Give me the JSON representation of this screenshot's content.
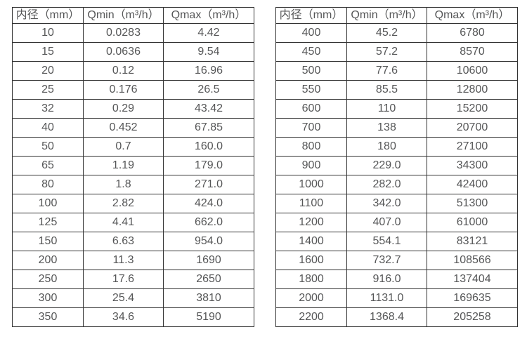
{
  "colors": {
    "background": "#ffffff",
    "border": "#333333",
    "text": "#555657"
  },
  "tables": [
    {
      "name": "flow-table-small-diameters",
      "headers": [
        "内径（mm）",
        "Qmin（m³/h）",
        "Qmax（m³/h）"
      ],
      "rows": [
        [
          "10",
          "0.0283",
          "4.42"
        ],
        [
          "15",
          "0.0636",
          "9.54"
        ],
        [
          "20",
          "0.12",
          "16.96"
        ],
        [
          "25",
          "0.176",
          "26.5"
        ],
        [
          "32",
          "0.29",
          "43.42"
        ],
        [
          "40",
          "0.452",
          "67.85"
        ],
        [
          "50",
          "0.7",
          "160.0"
        ],
        [
          "65",
          "1.19",
          "179.0"
        ],
        [
          "80",
          "1.8",
          "271.0"
        ],
        [
          "100",
          "2.82",
          "424.0"
        ],
        [
          "125",
          "4.41",
          "662.0"
        ],
        [
          "150",
          "6.63",
          "954.0"
        ],
        [
          "200",
          "11.3",
          "1690"
        ],
        [
          "250",
          "17.6",
          "2650"
        ],
        [
          "300",
          "25.4",
          "3810"
        ],
        [
          "350",
          "34.6",
          "5190"
        ]
      ]
    },
    {
      "name": "flow-table-large-diameters",
      "headers": [
        "内径（mm）",
        "Qmin（m³/h）",
        "Qmax（m³/h）"
      ],
      "rows": [
        [
          "400",
          "45.2",
          "6780"
        ],
        [
          "450",
          "57.2",
          "8570"
        ],
        [
          "500",
          "77.6",
          "10600"
        ],
        [
          "550",
          "85.5",
          "12800"
        ],
        [
          "600",
          "110",
          "15200"
        ],
        [
          "700",
          "138",
          "20700"
        ],
        [
          "800",
          "180",
          "27100"
        ],
        [
          "900",
          "229.0",
          "34300"
        ],
        [
          "1000",
          "282.0",
          "42400"
        ],
        [
          "1100",
          "342.0",
          "51300"
        ],
        [
          "1200",
          "407.0",
          "61000"
        ],
        [
          "1400",
          "554.1",
          "83121"
        ],
        [
          "1600",
          "732.7",
          "108566"
        ],
        [
          "1800",
          "916.0",
          "137404"
        ],
        [
          "2000",
          "1131.0",
          "169635"
        ],
        [
          "2200",
          "1368.4",
          "205258"
        ]
      ]
    }
  ]
}
